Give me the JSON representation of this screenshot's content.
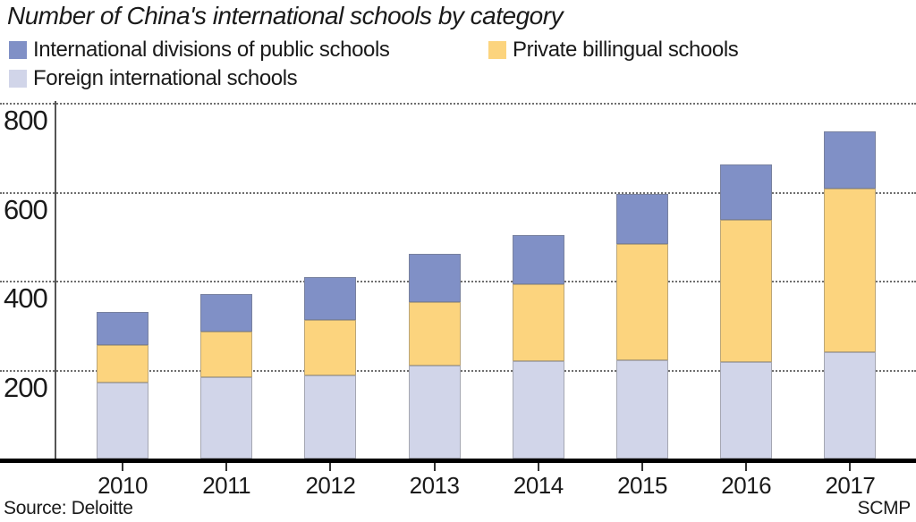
{
  "title": "Number of China's international schools by category",
  "legend": {
    "items": [
      {
        "label": "International divisions of public schools",
        "color": "#8090c6"
      },
      {
        "label": "Private billingual schools",
        "color": "#fcd47e"
      },
      {
        "label": "Foreign international schools",
        "color": "#d1d5e9"
      }
    ]
  },
  "source": "Source: Deloitte",
  "credit": "SCMP",
  "chart_data": {
    "type": "bar",
    "stacked": true,
    "title": "Number of China's international schools by category",
    "categories": [
      "2010",
      "2011",
      "2012",
      "2013",
      "2014",
      "2015",
      "2016",
      "2017"
    ],
    "series": [
      {
        "name": "Foreign international schools",
        "color": "#d1d5e9",
        "values": [
          170,
          182,
          187,
          210,
          219,
          222,
          218,
          240
        ]
      },
      {
        "name": "Private billingual schools",
        "color": "#fcd47e",
        "values": [
          86,
          103,
          125,
          142,
          173,
          260,
          319,
          367
        ]
      },
      {
        "name": "International divisions of public schools",
        "color": "#8090c6",
        "values": [
          73,
          85,
          97,
          108,
          111,
          112,
          124,
          128
        ]
      }
    ],
    "totals": [
      329,
      370,
      409,
      460,
      503,
      594,
      661,
      735
    ],
    "xlabel": "",
    "ylabel": "",
    "ylim": [
      0,
      800
    ],
    "yticks": [
      200,
      400,
      600,
      800
    ],
    "grid": "horizontal-dotted",
    "legend_position": "top"
  }
}
